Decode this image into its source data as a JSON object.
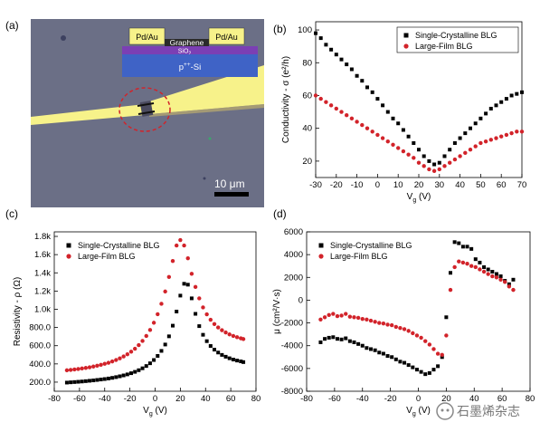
{
  "panel_a": {
    "label": "(a)",
    "electrode_left": "Pd/Au",
    "electrode_right": "Pd/Au",
    "graphene": "Graphene",
    "oxide": "SiO",
    "oxide_sub": "2",
    "substrate": "p",
    "substrate_sup": "++",
    "substrate_tail": "-Si",
    "scalebar": "10 μm",
    "colors": {
      "background": "#6b6f86",
      "electrode": "#f7f28a",
      "substrate": "#3f63c6",
      "oxide": "#7b3fb4",
      "marker": "#d2232a"
    }
  },
  "watermark": "石墨烯杂志",
  "chart_data": [
    {
      "panel": "(b)",
      "type": "scatter",
      "xlabel": "V_g (V)",
      "ylabel": "Conductivity - σ (e²/h)",
      "xlim": [
        -30,
        70
      ],
      "ylim": [
        10,
        105
      ],
      "xticks": [
        -30,
        -20,
        -10,
        0,
        10,
        20,
        30,
        40,
        50,
        60,
        70
      ],
      "yticks": [
        20,
        40,
        60,
        80,
        100
      ],
      "legend": "top-right",
      "series": [
        {
          "name": "Single-Crystalline BLG",
          "marker": "square",
          "color": "#000000",
          "x": [
            -30,
            -27.5,
            -25,
            -22.5,
            -20,
            -17.5,
            -15,
            -12.5,
            -10,
            -7.5,
            -5,
            -2.5,
            0,
            2.5,
            5,
            7.5,
            10,
            12.5,
            15,
            17.5,
            20,
            22.5,
            25,
            27.5,
            30,
            32.5,
            35,
            37.5,
            40,
            42.5,
            45,
            47.5,
            50,
            52.5,
            55,
            57.5,
            60,
            62.5,
            65,
            67.5,
            70
          ],
          "y": [
            98,
            95,
            91,
            88,
            85,
            82,
            79,
            76,
            72,
            69,
            65,
            62,
            58,
            54,
            50,
            46,
            43,
            39,
            35,
            31,
            27,
            23,
            20,
            18,
            19,
            23,
            27,
            31,
            34,
            37,
            40,
            43,
            46,
            49,
            52,
            54,
            56,
            58,
            60,
            61,
            62
          ]
        },
        {
          "name": "Large-Film BLG",
          "marker": "circle",
          "color": "#d2232a",
          "x": [
            -30,
            -27.5,
            -25,
            -22.5,
            -20,
            -17.5,
            -15,
            -12.5,
            -10,
            -7.5,
            -5,
            -2.5,
            0,
            2.5,
            5,
            7.5,
            10,
            12.5,
            15,
            17.5,
            20,
            22.5,
            25,
            27.5,
            30,
            32.5,
            35,
            37.5,
            40,
            42.5,
            45,
            47.5,
            50,
            52.5,
            55,
            57.5,
            60,
            62.5,
            65,
            67.5,
            70
          ],
          "y": [
            60,
            58,
            56,
            54,
            52,
            50,
            48,
            46,
            44,
            42,
            40,
            38,
            36,
            34,
            32,
            30,
            28,
            26,
            24,
            22,
            19,
            17,
            15,
            14,
            15,
            17,
            19,
            21,
            23,
            25,
            27,
            29,
            31,
            32,
            33,
            34,
            35,
            36,
            37,
            38,
            38
          ]
        }
      ]
    },
    {
      "panel": "(c)",
      "type": "scatter",
      "xlabel": "V_g (V)",
      "ylabel": "Resistivity - ρ (Ω)",
      "xlim": [
        -80,
        80
      ],
      "ylim": [
        100,
        1850
      ],
      "xticks": [
        -80,
        -60,
        -40,
        -20,
        0,
        20,
        40,
        60,
        80
      ],
      "yticks": [
        200,
        400,
        600,
        800,
        1000,
        1200,
        1400,
        1600,
        1800
      ],
      "ytick_labels": [
        "200.0",
        "400.0",
        "600.0",
        "800.0",
        "1.0k",
        "1.2k",
        "1.4k",
        "1.6k",
        "1.8k"
      ],
      "legend": "top-left",
      "series": [
        {
          "name": "Single-Crystalline BLG",
          "marker": "square",
          "color": "#000000",
          "x": [
            -70,
            -67,
            -64,
            -61,
            -58,
            -55,
            -52,
            -49,
            -46,
            -43,
            -40,
            -37,
            -34,
            -31,
            -28,
            -25,
            -22,
            -19,
            -16,
            -13,
            -10,
            -7,
            -4,
            -1,
            2,
            5,
            8,
            11,
            14,
            17,
            20,
            23,
            26,
            29,
            32,
            35,
            38,
            41,
            44,
            47,
            50,
            53,
            56,
            59,
            62,
            65,
            68,
            70
          ],
          "y": [
            195,
            198,
            201,
            204,
            207,
            211,
            215,
            219,
            224,
            229,
            234,
            240,
            247,
            255,
            264,
            274,
            285,
            298,
            313,
            331,
            352,
            377,
            407,
            443,
            488,
            543,
            613,
            703,
            820,
            975,
            1150,
            1280,
            1270,
            1120,
            950,
            815,
            720,
            650,
            597,
            557,
            525,
            499,
            479,
            462,
            448,
            437,
            428,
            420
          ]
        },
        {
          "name": "Large-Film BLG",
          "marker": "circle",
          "color": "#d2232a",
          "x": [
            -70,
            -67,
            -64,
            -61,
            -58,
            -55,
            -52,
            -49,
            -46,
            -43,
            -40,
            -37,
            -34,
            -31,
            -28,
            -25,
            -22,
            -19,
            -16,
            -13,
            -10,
            -7,
            -4,
            -1,
            2,
            5,
            8,
            11,
            14,
            17,
            20,
            23,
            26,
            29,
            32,
            35,
            38,
            41,
            44,
            47,
            50,
            53,
            56,
            59,
            62,
            65,
            68,
            70
          ],
          "y": [
            330,
            334,
            339,
            344,
            350,
            356,
            363,
            371,
            380,
            390,
            401,
            413,
            427,
            443,
            461,
            482,
            506,
            534,
            567,
            606,
            652,
            707,
            773,
            852,
            946,
            1060,
            1195,
            1355,
            1530,
            1700,
            1760,
            1700,
            1560,
            1390,
            1245,
            1120,
            1020,
            945,
            885,
            838,
            800,
            770,
            745,
            724,
            707,
            693,
            681,
            673
          ]
        }
      ]
    },
    {
      "panel": "(d)",
      "type": "scatter",
      "xlabel": "V_g (V)",
      "ylabel": "μ (cm²/V·s)",
      "xlim": [
        -80,
        80
      ],
      "ylim": [
        -8000,
        6000
      ],
      "xticks": [
        -80,
        -60,
        -40,
        -20,
        0,
        20,
        40,
        60,
        80
      ],
      "yticks": [
        -8000,
        -6000,
        -4000,
        -2000,
        0,
        2000,
        4000,
        6000
      ],
      "legend": "top-left",
      "series": [
        {
          "name": "Single-Crystalline BLG",
          "marker": "square",
          "color": "#000000",
          "x": [
            -70,
            -67,
            -64,
            -61,
            -58,
            -55,
            -52,
            -49,
            -46,
            -43,
            -40,
            -37,
            -34,
            -31,
            -28,
            -25,
            -22,
            -19,
            -16,
            -13,
            -10,
            -7,
            -4,
            -1,
            2,
            5,
            8,
            11,
            14,
            17,
            20,
            23,
            26,
            29,
            32,
            35,
            38,
            41,
            44,
            47,
            50,
            53,
            56,
            59,
            62,
            65,
            68
          ],
          "y": [
            -3700,
            -3400,
            -3300,
            -3250,
            -3400,
            -3450,
            -3350,
            -3600,
            -3700,
            -3850,
            -4000,
            -4200,
            -4300,
            -4400,
            -4600,
            -4700,
            -4900,
            -5000,
            -5200,
            -5400,
            -5500,
            -5700,
            -5900,
            -6100,
            -6300,
            -6500,
            -6400,
            -6100,
            -5800,
            -5000,
            -1500,
            2400,
            5100,
            5000,
            4700,
            4700,
            4500,
            3600,
            3300,
            2900,
            2700,
            2500,
            2300,
            2100,
            1700,
            1400,
            1800
          ]
        },
        {
          "name": "Large-Film BLG",
          "marker": "circle",
          "color": "#d2232a",
          "x": [
            -70,
            -67,
            -64,
            -61,
            -58,
            -55,
            -52,
            -49,
            -46,
            -43,
            -40,
            -37,
            -34,
            -31,
            -28,
            -25,
            -22,
            -19,
            -16,
            -13,
            -10,
            -7,
            -4,
            -1,
            2,
            5,
            8,
            11,
            14,
            17,
            20,
            23,
            26,
            29,
            32,
            35,
            38,
            41,
            44,
            47,
            50,
            53,
            56,
            59,
            62,
            65,
            68
          ],
          "y": [
            -1700,
            -1500,
            -1300,
            -1200,
            -1400,
            -1350,
            -1200,
            -1450,
            -1500,
            -1550,
            -1650,
            -1700,
            -1800,
            -1900,
            -2000,
            -2050,
            -2150,
            -2200,
            -2350,
            -2450,
            -2550,
            -2700,
            -2900,
            -3100,
            -3300,
            -3600,
            -3900,
            -4300,
            -4700,
            -4800,
            -3100,
            900,
            2900,
            3400,
            3300,
            3200,
            3000,
            2900,
            2700,
            2500,
            2300,
            2100,
            2000,
            1800,
            1600,
            1200,
            900
          ]
        }
      ]
    }
  ]
}
